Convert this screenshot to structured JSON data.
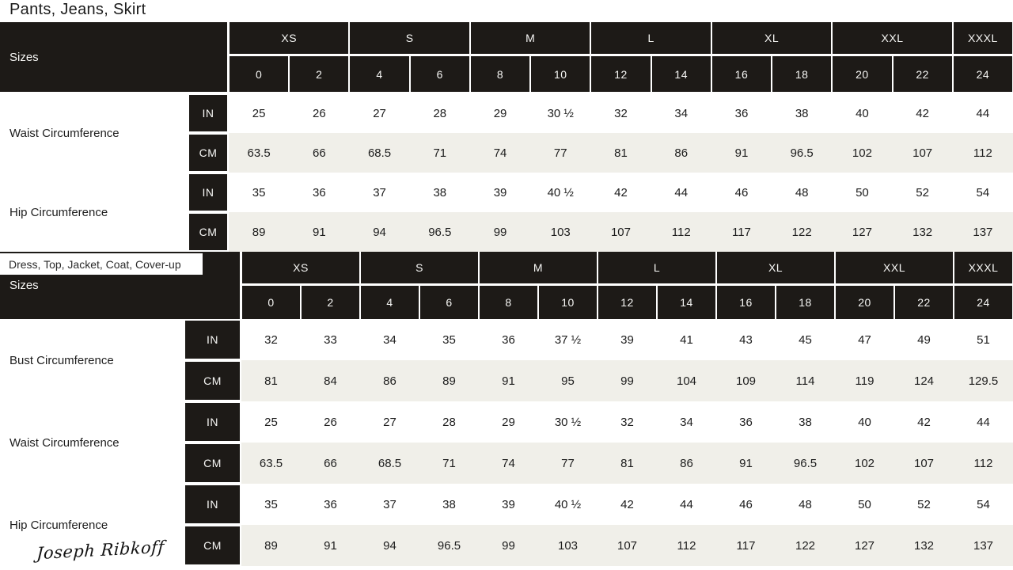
{
  "colors": {
    "ink": "#1d1a17",
    "stripe": "#f0efe9",
    "header_text": "#f7f7f5",
    "body_text": "#1d1d1d",
    "page_bg": "#ffffff"
  },
  "logo": {
    "text": "Joseph Ribkoff"
  },
  "tables": [
    {
      "title": "Pants, Jeans, Skirt",
      "sizes_label": "Sizes",
      "size_groups": [
        {
          "label": "XS",
          "sizes": [
            "0",
            "2"
          ]
        },
        {
          "label": "S",
          "sizes": [
            "4",
            "6"
          ]
        },
        {
          "label": "M",
          "sizes": [
            "8",
            "10"
          ]
        },
        {
          "label": "L",
          "sizes": [
            "12",
            "14"
          ]
        },
        {
          "label": "XL",
          "sizes": [
            "16",
            "18"
          ]
        },
        {
          "label": "XXL",
          "sizes": [
            "20",
            "22"
          ]
        },
        {
          "label": "XXXL",
          "sizes": [
            "24"
          ]
        }
      ],
      "measurements": [
        {
          "label": "Waist Circumference",
          "rows": [
            {
              "unit": "IN",
              "values": [
                "25",
                "26",
                "27",
                "28",
                "29",
                "30 ½",
                "32",
                "34",
                "36",
                "38",
                "40",
                "42",
                "44"
              ]
            },
            {
              "unit": "CM",
              "values": [
                "63.5",
                "66",
                "68.5",
                "71",
                "74",
                "77",
                "81",
                "86",
                "91",
                "96.5",
                "102",
                "107",
                "112"
              ]
            }
          ]
        },
        {
          "label": "Hip Circumference",
          "rows": [
            {
              "unit": "IN",
              "values": [
                "35",
                "36",
                "37",
                "38",
                "39",
                "40 ½",
                "42",
                "44",
                "46",
                "48",
                "50",
                "52",
                "54"
              ]
            },
            {
              "unit": "CM",
              "values": [
                "89",
                "91",
                "94",
                "96.5",
                "99",
                "103",
                "107",
                "112",
                "117",
                "122",
                "127",
                "132",
                "137"
              ]
            }
          ]
        }
      ]
    },
    {
      "title": "Dress, Top, Jacket, Coat, Cover-up",
      "sizes_label": "Sizes",
      "size_groups": [
        {
          "label": "XS",
          "sizes": [
            "0",
            "2"
          ]
        },
        {
          "label": "S",
          "sizes": [
            "4",
            "6"
          ]
        },
        {
          "label": "M",
          "sizes": [
            "8",
            "10"
          ]
        },
        {
          "label": "L",
          "sizes": [
            "12",
            "14"
          ]
        },
        {
          "label": "XL",
          "sizes": [
            "16",
            "18"
          ]
        },
        {
          "label": "XXL",
          "sizes": [
            "20",
            "22"
          ]
        },
        {
          "label": "XXXL",
          "sizes": [
            "24"
          ]
        }
      ],
      "measurements": [
        {
          "label": "Bust Circumference",
          "rows": [
            {
              "unit": "IN",
              "values": [
                "32",
                "33",
                "34",
                "35",
                "36",
                "37 ½",
                "39",
                "41",
                "43",
                "45",
                "47",
                "49",
                "51"
              ]
            },
            {
              "unit": "CM",
              "values": [
                "81",
                "84",
                "86",
                "89",
                "91",
                "95",
                "99",
                "104",
                "109",
                "114",
                "119",
                "124",
                "129.5"
              ]
            }
          ]
        },
        {
          "label": "Waist Circumference",
          "rows": [
            {
              "unit": "IN",
              "values": [
                "25",
                "26",
                "27",
                "28",
                "29",
                "30 ½",
                "32",
                "34",
                "36",
                "38",
                "40",
                "42",
                "44"
              ]
            },
            {
              "unit": "CM",
              "values": [
                "63.5",
                "66",
                "68.5",
                "71",
                "74",
                "77",
                "81",
                "86",
                "91",
                "96.5",
                "102",
                "107",
                "112"
              ]
            }
          ]
        },
        {
          "label": "Hip Circumference",
          "rows": [
            {
              "unit": "IN",
              "values": [
                "35",
                "36",
                "37",
                "38",
                "39",
                "40 ½",
                "42",
                "44",
                "46",
                "48",
                "50",
                "52",
                "54"
              ]
            },
            {
              "unit": "CM",
              "values": [
                "89",
                "91",
                "94",
                "96.5",
                "99",
                "103",
                "107",
                "112",
                "117",
                "122",
                "127",
                "132",
                "137"
              ]
            }
          ]
        }
      ]
    }
  ]
}
